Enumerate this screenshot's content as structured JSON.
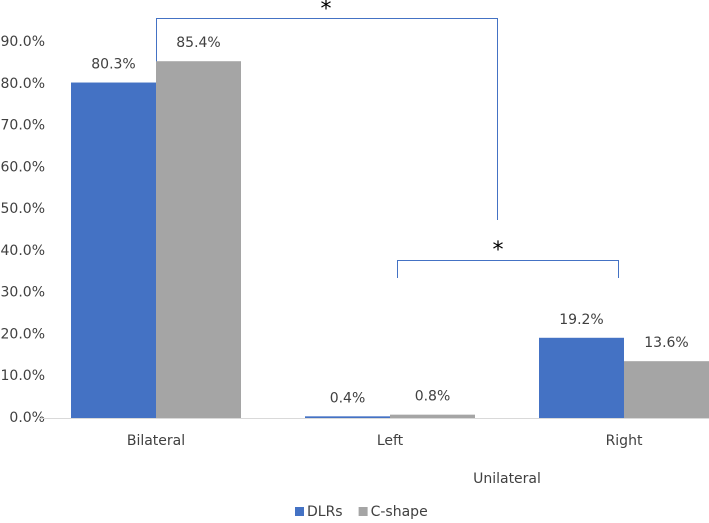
{
  "chart_data": {
    "type": "bar",
    "categories": [
      "Bilateral",
      "Left",
      "Right"
    ],
    "x_group_label": "Unilateral",
    "series": [
      {
        "name": "DLRs",
        "color": "#4472c4",
        "values": [
          80.3,
          0.4,
          19.2
        ],
        "value_labels": [
          "80.3%",
          "0.4%",
          "19.2%"
        ]
      },
      {
        "name": "C-shape",
        "color": "#a5a5a5",
        "values": [
          85.4,
          0.8,
          13.6
        ],
        "value_labels": [
          "85.4%",
          "0.8%",
          "13.6%"
        ]
      }
    ],
    "ylim": [
      0,
      90
    ],
    "yticks": [
      {
        "value": 0,
        "label": "0.0%"
      },
      {
        "value": 10,
        "label": "10.0%"
      },
      {
        "value": 20,
        "label": "20.0%"
      },
      {
        "value": 30,
        "label": "30.0%"
      },
      {
        "value": 40,
        "label": "40.0%"
      },
      {
        "value": 50,
        "label": "50.0%"
      },
      {
        "value": 60,
        "label": "60.0%"
      },
      {
        "value": 70,
        "label": "70.0%"
      },
      {
        "value": 80,
        "label": "80.0%"
      },
      {
        "value": 90,
        "label": "90.0%"
      }
    ],
    "grid": false,
    "legend": "bottom",
    "annotations": [
      "*",
      "*"
    ]
  }
}
